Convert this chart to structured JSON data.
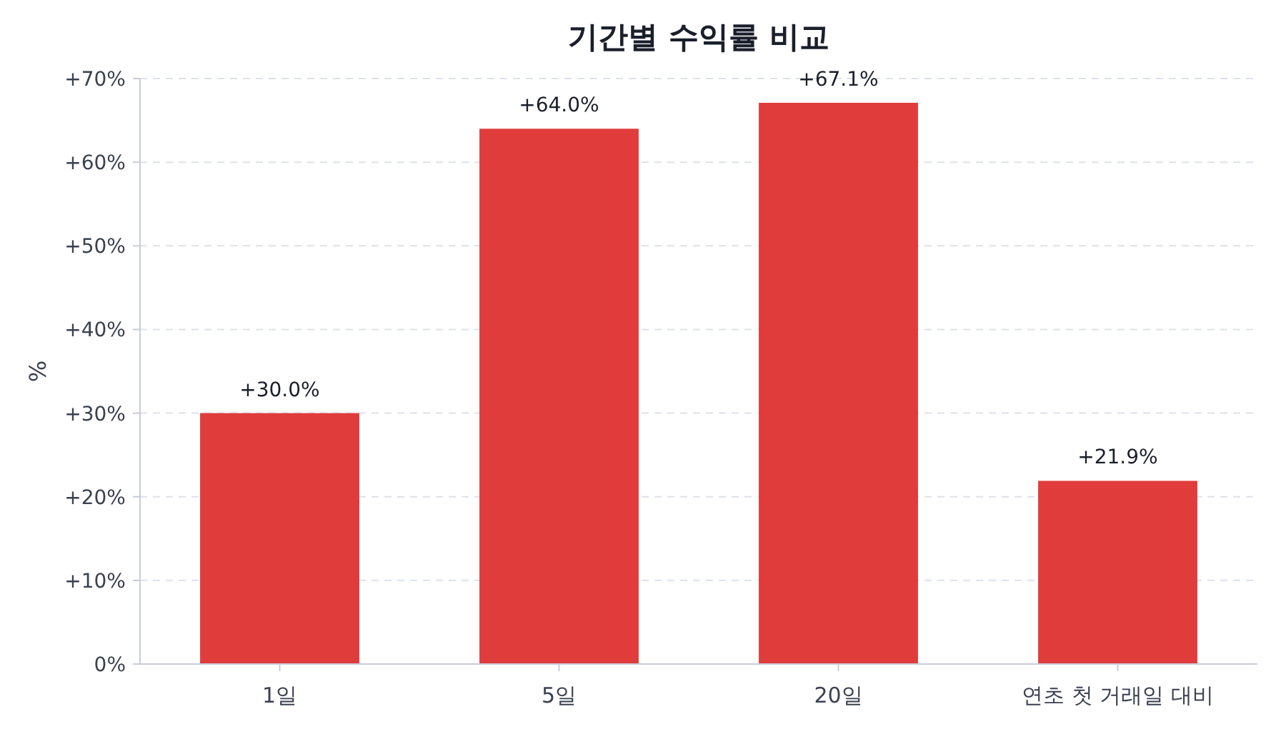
{
  "chart_data": {
    "type": "bar",
    "title": "기간별 수익률 비교",
    "ylabel": "%",
    "categories": [
      "1일",
      "5일",
      "20일",
      "연초 첫 거래일 대비"
    ],
    "values": [
      30.0,
      64.0,
      67.1,
      21.9
    ],
    "color": "#e03c3c",
    "value_labels": [
      "+30.0%",
      "+64.0%",
      "+67.1%",
      "+21.9%"
    ],
    "ylim": [
      0,
      70
    ],
    "yticks": [
      {
        "value": 0,
        "label": "0%"
      },
      {
        "value": 10,
        "label": "+10%"
      },
      {
        "value": 20,
        "label": "+20%"
      },
      {
        "value": 30,
        "label": "+30%"
      },
      {
        "value": 40,
        "label": "+40%"
      },
      {
        "value": 50,
        "label": "+50%"
      },
      {
        "value": 60,
        "label": "+60%"
      },
      {
        "value": 70,
        "label": "+70%"
      }
    ],
    "grid": "y"
  }
}
